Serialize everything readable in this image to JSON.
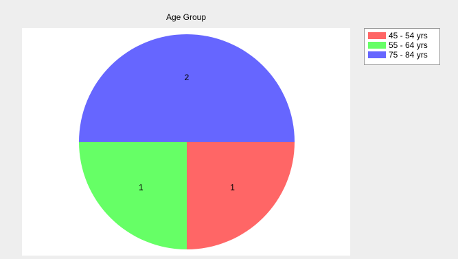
{
  "chart_data": {
    "type": "pie",
    "title": "Age Group",
    "labels": [
      "45 - 54 yrs",
      "55 - 64 yrs",
      "75 - 84 yrs"
    ],
    "values": [
      1,
      1,
      2
    ],
    "colors": [
      "#ff6666",
      "#66ff66",
      "#6666ff"
    ],
    "legend_position": "top-right"
  }
}
